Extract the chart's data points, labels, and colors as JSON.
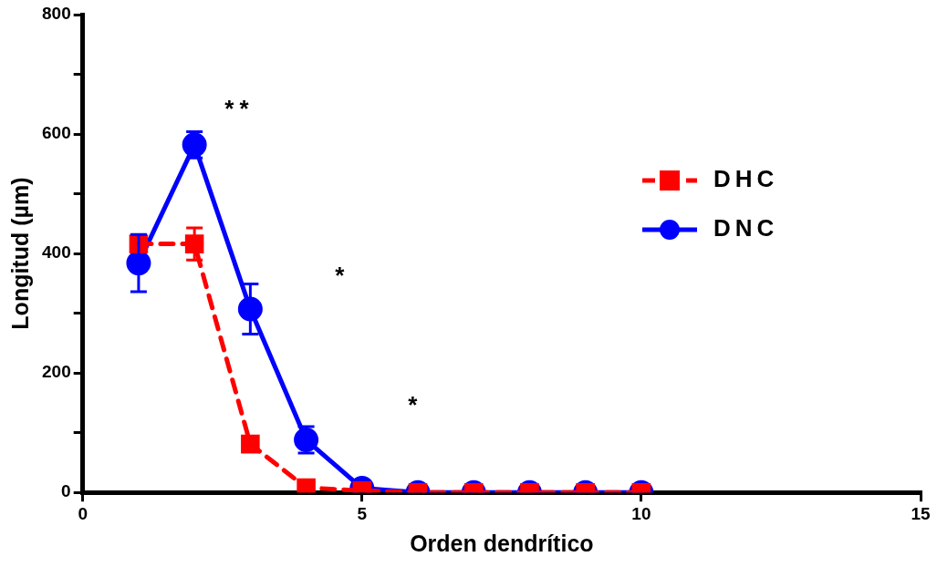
{
  "chart_data": {
    "type": "line",
    "xlabel": "Orden dendrítico",
    "ylabel": "Longitud (µm)",
    "x": [
      1,
      2,
      3,
      4,
      5,
      6,
      7,
      8,
      9,
      10
    ],
    "xlim": [
      0,
      15
    ],
    "xticks": [
      0,
      5,
      10,
      15
    ],
    "ylim": [
      0,
      800
    ],
    "yticks": [
      0,
      {
        "value": 100,
        "label": null
      },
      200,
      {
        "value": 300,
        "label": null
      },
      400,
      {
        "value": 500,
        "label": null
      },
      600,
      {
        "value": 700,
        "label": null
      },
      800
    ],
    "grid": false,
    "legend": "top right",
    "series": [
      {
        "name": "DHC",
        "color": "#ff0000",
        "marker": "square",
        "line_style": "dashed",
        "values": [
          416,
          416,
          81,
          8,
          3,
          0,
          0,
          0,
          0,
          0
        ],
        "errors": [
          null,
          27,
          null,
          null,
          null,
          null,
          null,
          null,
          null,
          null
        ]
      },
      {
        "name": "DNC",
        "color": "#0000ff",
        "marker": "circle",
        "line_style": "solid",
        "values": [
          384,
          582,
          307,
          88,
          7,
          0,
          0,
          0,
          0,
          0
        ],
        "errors": [
          48,
          22,
          42,
          22,
          null,
          null,
          null,
          null,
          null,
          null
        ]
      }
    ],
    "annotations": [
      "**",
      "*",
      "*"
    ]
  }
}
